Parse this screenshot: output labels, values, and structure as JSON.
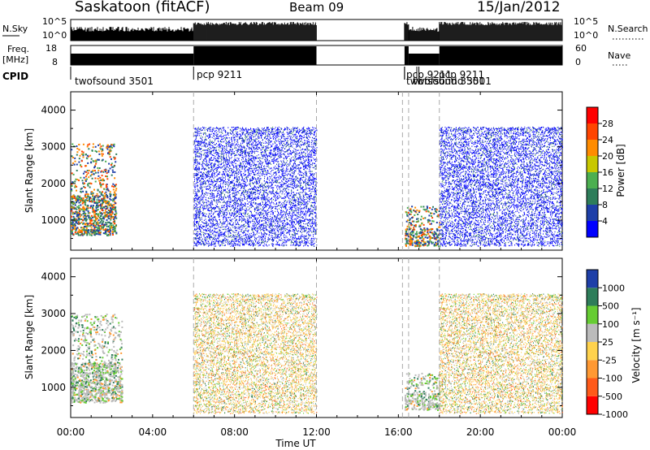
{
  "header": {
    "title": "Saskatoon (fitACF)",
    "beam": "Beam 09",
    "date": "15/Jan/2012"
  },
  "noise_panel": {
    "left_label": "N.Sky",
    "right_label": "N.Search",
    "left_ticks": [
      "10^5",
      "10^0"
    ],
    "right_ticks": [
      "10^5",
      "10^0"
    ]
  },
  "freq_panel": {
    "left_label_line1": "Freq.",
    "left_label_line2": "[MHz]",
    "right_label": "Nave",
    "left_ticks": [
      "18",
      "8"
    ],
    "right_ticks": [
      "60",
      "0"
    ]
  },
  "cpid": {
    "label": "CPID",
    "entries": [
      {
        "text": "twofsound 3501",
        "start_hour": 0.0
      },
      {
        "text": "pcp 9211",
        "start_hour": 6.0
      },
      {
        "text": "pcp 9211",
        "start_hour": 16.3
      },
      {
        "text": "twofsound 3501",
        "start_hour": 16.3
      },
      {
        "text": "pcp 9211",
        "start_hour": 17.0
      },
      {
        "text": "twofsound 3501",
        "start_hour": 16.9
      }
    ]
  },
  "range_axis": {
    "label": "Slant Range [km]",
    "ticks": [
      1000,
      2000,
      3000,
      4000
    ]
  },
  "time_axis": {
    "label": "Time UT",
    "ticks": [
      "00:00",
      "04:00",
      "08:00",
      "12:00",
      "16:00",
      "20:00",
      "00:00"
    ]
  },
  "power_colorbar": {
    "label": "Power [dB]",
    "ticks": [
      "28",
      "24",
      "20",
      "16",
      "12",
      "8",
      "4"
    ],
    "colors": [
      "#0000ff",
      "#1e3fa8",
      "#2e7d5a",
      "#4caf50",
      "#c8c800",
      "#ff8c00",
      "#ff4500",
      "#ff0000"
    ]
  },
  "velocity_colorbar": {
    "label": "Velocity [m s⁻¹]",
    "ticks": [
      "1000",
      "500",
      "100",
      "25",
      "-25",
      "-100",
      "-500",
      "-1000"
    ],
    "colors": [
      "#1e3fa8",
      "#2e7d5a",
      "#66cc33",
      "#bbbbbb",
      "#ffd24d",
      "#ff9933",
      "#ff5a1a",
      "#ff0000"
    ]
  },
  "chart_data": [
    {
      "type": "heatmap",
      "title": "Saskatoon (fitACF) Beam 09 15/Jan/2012 Power",
      "xlabel": "Time UT",
      "ylabel": "Slant Range [km]",
      "xlim": [
        0,
        24
      ],
      "ylim": [
        180,
        4500
      ],
      "colorbar": "Power [dB]",
      "scatter_segments": [
        {
          "start_hour": 0.0,
          "end_hour": 2.2,
          "range_km": [
            600,
            3100
          ],
          "dominant_db": 12
        },
        {
          "start_hour": 6.0,
          "end_hour": 12.0,
          "range_km": [
            300,
            3550
          ],
          "dominant_db": 6
        },
        {
          "start_hour": 16.3,
          "end_hour": 18.0,
          "range_km": [
            300,
            1400
          ],
          "dominant_db": 16
        },
        {
          "start_hour": 18.0,
          "end_hour": 24.0,
          "range_km": [
            300,
            3550
          ],
          "dominant_db": 8
        }
      ]
    },
    {
      "type": "heatmap",
      "title": "Saskatoon (fitACF) Beam 09 15/Jan/2012 Velocity",
      "xlabel": "Time UT",
      "ylabel": "Slant Range [km]",
      "xlim": [
        0,
        24
      ],
      "ylim": [
        180,
        4500
      ],
      "colorbar": "Velocity [m s⁻¹]",
      "scatter_segments": [
        {
          "start_hour": 0.0,
          "end_hour": 2.5,
          "range_km": [
            600,
            3000
          ],
          "dominant_velocity": 0
        },
        {
          "start_hour": 6.0,
          "end_hour": 12.0,
          "range_km": [
            300,
            3550
          ],
          "dominant_velocity": 0
        },
        {
          "start_hour": 16.3,
          "end_hour": 18.0,
          "range_km": [
            400,
            1400
          ],
          "dominant_velocity": 0
        },
        {
          "start_hour": 18.0,
          "end_hour": 24.0,
          "range_km": [
            300,
            3550
          ],
          "dominant_velocity": 0
        }
      ]
    }
  ]
}
